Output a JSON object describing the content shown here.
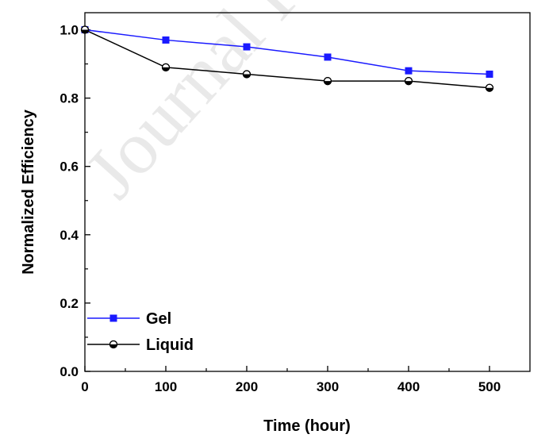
{
  "watermark": "Journal Pre-proof",
  "chart_data": {
    "type": "line",
    "xlabel": "Time (hour)",
    "ylabel": "Normalized Efficiency",
    "xlim": [
      0,
      550
    ],
    "ylim": [
      0.0,
      1.05
    ],
    "x_ticks": [
      0,
      100,
      200,
      300,
      400,
      500
    ],
    "x_tick_labels": [
      "0",
      "100",
      "200",
      "300",
      "400",
      "500"
    ],
    "y_ticks": [
      0.0,
      0.2,
      0.4,
      0.6,
      0.8,
      1.0
    ],
    "y_tick_labels": [
      "0.0",
      "0.2",
      "0.4",
      "0.6",
      "0.8",
      "1.0"
    ],
    "grid": false,
    "legend_position": "bottom-left",
    "series": [
      {
        "name": "Gel",
        "color": "#1a1aff",
        "marker": "square",
        "x": [
          0,
          100,
          200,
          300,
          400,
          500
        ],
        "values": [
          1.0,
          0.97,
          0.95,
          0.92,
          0.88,
          0.87
        ]
      },
      {
        "name": "Liquid",
        "color": "#000000",
        "marker": "half-filled-circle",
        "x": [
          0,
          100,
          200,
          300,
          400,
          500
        ],
        "values": [
          1.0,
          0.89,
          0.87,
          0.85,
          0.85,
          0.83
        ]
      }
    ]
  }
}
